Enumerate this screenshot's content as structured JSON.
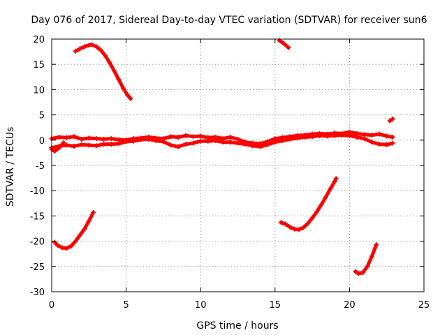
{
  "chart_data": {
    "type": "scatter",
    "title": "Day 076 of 2017, Sidereal Day-to-day VTEC variation (SDTVAR) for receiver sun6",
    "xlabel": "GPS time / hours",
    "ylabel": "SDTVAR / TECUs",
    "xlim": [
      0,
      25
    ],
    "ylim": [
      -30,
      20
    ],
    "xticks": [
      0,
      5,
      10,
      15,
      20,
      25
    ],
    "yticks": [
      -30,
      -25,
      -20,
      -15,
      -10,
      -5,
      0,
      5,
      10,
      15,
      20
    ],
    "grid": true,
    "series_color": "#ff0000",
    "series": [
      {
        "name": "main-band-upper",
        "x": [
          0.0,
          0.5,
          1.0,
          1.5,
          2.0,
          2.5,
          3.0,
          3.5,
          4.0,
          4.5,
          5.0,
          5.5,
          6.0,
          6.5,
          7.0,
          7.5,
          8.0,
          8.5,
          9.0,
          9.5,
          10.0,
          10.5,
          11.0,
          11.5,
          12.0,
          12.5,
          13.0,
          13.5,
          14.0,
          14.5,
          15.0,
          15.5,
          16.0,
          16.5,
          17.0,
          17.5,
          18.0,
          18.5,
          19.0,
          19.5,
          20.0,
          20.5,
          21.0,
          21.5,
          22.0,
          22.5,
          22.9
        ],
        "y": [
          0.3,
          0.6,
          0.5,
          0.7,
          0.2,
          0.4,
          0.3,
          0.2,
          0.3,
          0.1,
          0.0,
          0.3,
          0.4,
          0.6,
          0.4,
          0.3,
          0.7,
          0.6,
          0.9,
          0.7,
          0.8,
          0.5,
          0.6,
          0.3,
          0.6,
          0.2,
          -0.4,
          -0.6,
          -0.7,
          -0.3,
          0.3,
          0.5,
          0.7,
          0.9,
          1.0,
          1.2,
          1.3,
          1.2,
          1.4,
          1.3,
          1.6,
          1.3,
          1.1,
          1.0,
          1.2,
          0.8,
          0.6
        ]
      },
      {
        "name": "main-band-lower",
        "x": [
          0.0,
          0.5,
          1.0,
          1.5,
          2.0,
          2.5,
          3.0,
          3.5,
          4.0,
          4.5,
          5.0,
          5.5,
          6.0,
          6.5,
          7.0,
          7.5,
          8.0,
          8.5,
          9.0,
          9.5,
          10.0,
          10.5,
          11.0,
          11.5,
          12.0,
          12.5,
          13.0,
          13.5,
          14.0,
          14.5,
          15.0,
          15.5,
          16.0,
          16.5,
          17.0,
          17.5,
          18.0,
          18.5,
          19.0,
          19.5,
          20.0,
          20.5,
          21.0,
          21.5,
          22.0,
          22.5,
          22.9
        ],
        "y": [
          -1.5,
          -1.2,
          -1.0,
          -1.2,
          -0.9,
          -1.0,
          -1.1,
          -0.8,
          -0.8,
          -0.7,
          -0.3,
          -0.2,
          0.1,
          0.2,
          -0.1,
          -0.3,
          -1.0,
          -1.3,
          -0.8,
          -0.6,
          -0.2,
          -0.2,
          -0.1,
          -0.4,
          -0.4,
          -0.6,
          -0.8,
          -1.1,
          -1.3,
          -0.9,
          -0.4,
          -0.1,
          0.2,
          0.4,
          0.6,
          0.7,
          0.9,
          0.8,
          0.9,
          1.0,
          0.9,
          0.6,
          0.3,
          -0.4,
          -0.8,
          -0.9,
          -0.6
        ]
      },
      {
        "name": "segment-early-left",
        "x": [
          0.0,
          0.2,
          0.5,
          0.8
        ],
        "y": [
          -1.8,
          -2.2,
          -1.5,
          -0.5
        ]
      },
      {
        "name": "segment-early-low",
        "x": [
          0.2,
          0.4,
          0.7,
          1.0,
          1.3,
          1.6,
          1.9,
          2.2,
          2.5,
          2.8
        ],
        "y": [
          -20.2,
          -20.8,
          -21.3,
          -21.4,
          -21.0,
          -20.0,
          -18.8,
          -17.6,
          -16.0,
          -14.3
        ]
      },
      {
        "name": "segment-early-high",
        "x": [
          1.6,
          1.9,
          2.2,
          2.5,
          2.7,
          3.0,
          3.3,
          3.6,
          3.9,
          4.2,
          4.5,
          4.8,
          5.1,
          5.3
        ],
        "y": [
          17.6,
          18.1,
          18.5,
          18.8,
          18.9,
          18.5,
          17.8,
          16.7,
          15.3,
          13.7,
          12.0,
          10.3,
          8.9,
          8.2
        ]
      },
      {
        "name": "segment-mid-high",
        "x": [
          15.3,
          15.6,
          15.9
        ],
        "y": [
          19.7,
          19.1,
          18.3
        ]
      },
      {
        "name": "segment-mid-low",
        "x": [
          15.4,
          15.7,
          16.0,
          16.3,
          16.6,
          16.9,
          17.2,
          17.5,
          17.8,
          18.1,
          18.4,
          18.7,
          19.0,
          19.1
        ],
        "y": [
          -16.3,
          -16.6,
          -17.2,
          -17.6,
          -17.7,
          -17.3,
          -16.5,
          -15.4,
          -14.2,
          -12.8,
          -11.3,
          -9.7,
          -8.2,
          -7.6
        ]
      },
      {
        "name": "segment-late-low",
        "x": [
          20.4,
          20.6,
          20.9,
          21.2,
          21.5,
          21.8
        ],
        "y": [
          -26.0,
          -26.4,
          -26.2,
          -25.0,
          -23.0,
          -20.7
        ]
      },
      {
        "name": "segment-late-high",
        "x": [
          22.7,
          22.9
        ],
        "y": [
          3.8,
          4.2
        ]
      }
    ]
  }
}
